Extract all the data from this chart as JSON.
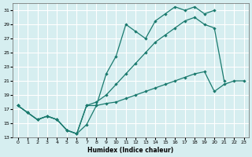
{
  "xlabel": "Humidex (Indice chaleur)",
  "bg_color": "#d6eef0",
  "grid_color": "#ffffff",
  "line_color": "#1a7a6e",
  "xlim": [
    -0.5,
    23.5
  ],
  "ylim": [
    13,
    32
  ],
  "yticks": [
    13,
    15,
    17,
    19,
    21,
    23,
    25,
    27,
    29,
    31
  ],
  "xticks": [
    0,
    1,
    2,
    3,
    4,
    5,
    6,
    7,
    8,
    9,
    10,
    11,
    12,
    13,
    14,
    15,
    16,
    17,
    18,
    19,
    20,
    21,
    22,
    23
  ],
  "curve1_x": [
    0,
    1,
    2,
    3,
    4,
    5,
    6,
    7,
    8,
    9,
    10,
    11,
    12,
    13,
    14,
    15,
    16,
    17,
    18,
    19,
    20
  ],
  "curve1_y": [
    17.5,
    16.5,
    15.5,
    16.0,
    15.5,
    14.0,
    13.5,
    14.8,
    17.5,
    22.0,
    24.5,
    29.0,
    28.0,
    27.0,
    29.5,
    30.5,
    31.5,
    31.0,
    31.5,
    30.5,
    31.0
  ],
  "curve2_x": [
    0,
    1,
    2,
    3,
    4,
    5,
    6,
    7,
    8,
    9,
    10,
    11,
    12,
    13,
    14,
    15,
    16,
    17,
    18,
    19,
    20,
    21
  ],
  "curve2_y": [
    17.5,
    16.5,
    15.5,
    16.0,
    15.5,
    14.0,
    13.5,
    17.5,
    18.0,
    19.0,
    20.5,
    22.0,
    23.5,
    25.0,
    26.5,
    27.5,
    28.5,
    29.5,
    30.0,
    29.0,
    28.5,
    21.0
  ],
  "curve3_x": [
    0,
    1,
    2,
    3,
    4,
    5,
    6,
    7,
    8,
    9,
    10,
    11,
    12,
    13,
    14,
    15,
    16,
    17,
    18,
    19,
    20,
    21,
    22,
    23
  ],
  "curve3_y": [
    17.5,
    16.5,
    15.5,
    16.0,
    15.5,
    14.0,
    13.5,
    17.5,
    17.5,
    17.8,
    18.0,
    18.5,
    19.0,
    19.5,
    20.0,
    20.5,
    21.0,
    21.5,
    22.0,
    22.3,
    19.5,
    20.5,
    21.0,
    21.0
  ]
}
